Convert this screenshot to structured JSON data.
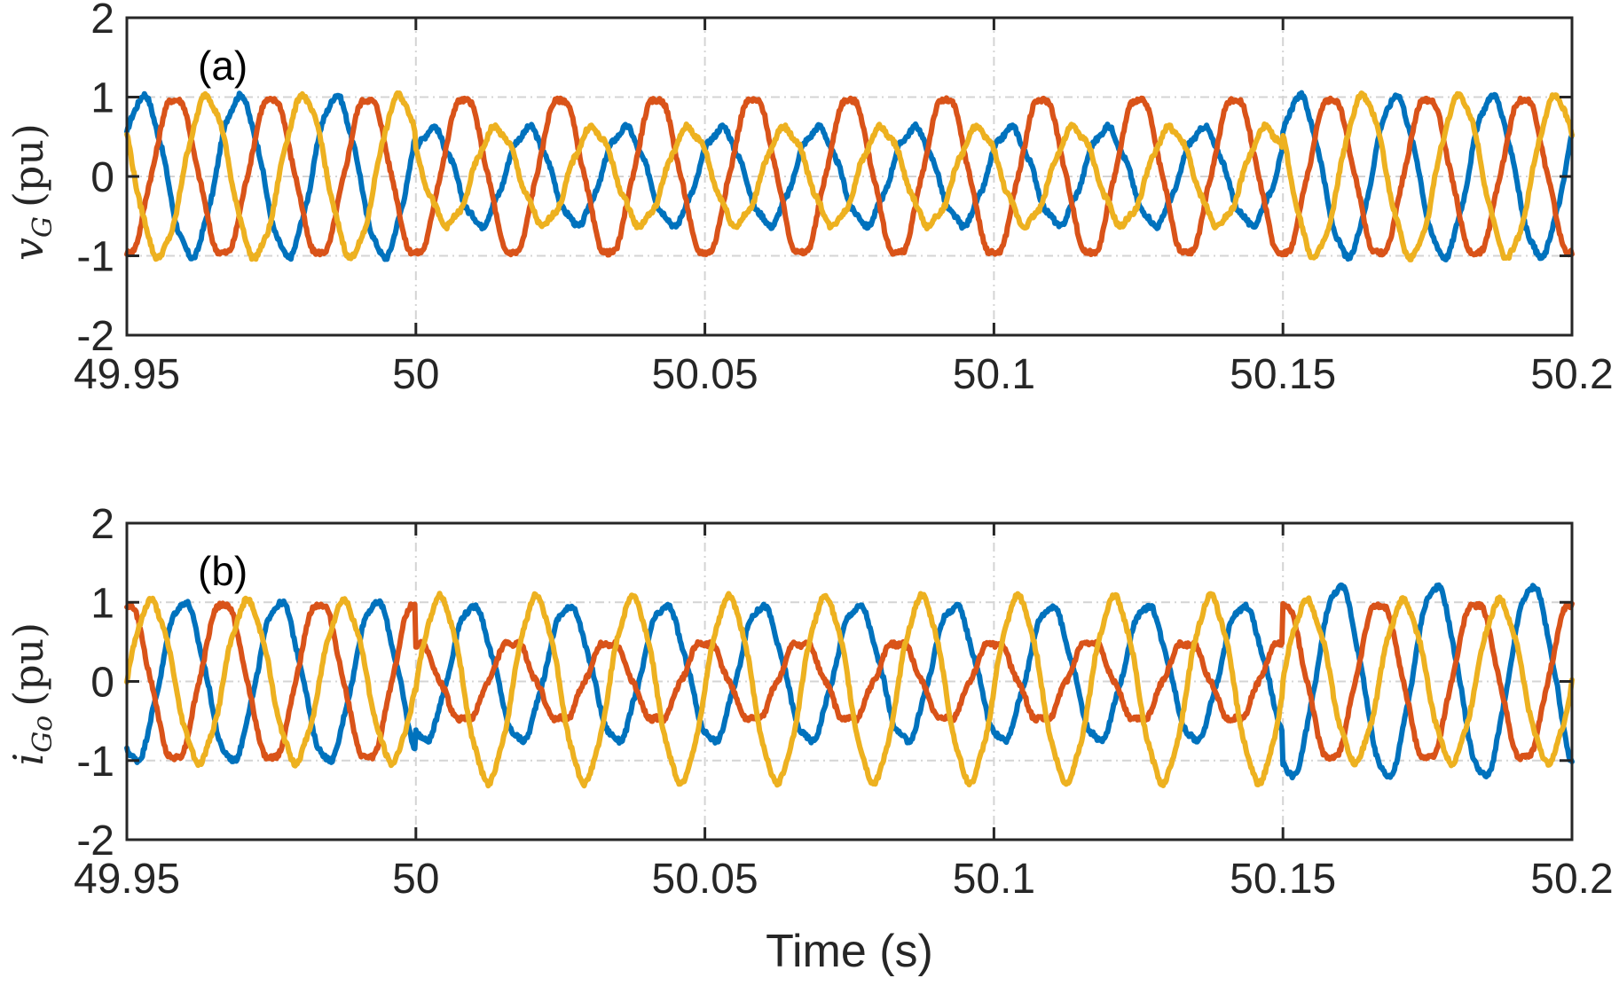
{
  "chart_data": [
    {
      "type": "line",
      "panel_label": "(a)",
      "ylabel_main": "v",
      "ylabel_sub": "G",
      "ylabel_unit": "(pu)",
      "xlim": [
        49.95,
        50.2
      ],
      "ylim": [
        -2,
        2
      ],
      "xticks": [
        49.95,
        50,
        50.05,
        50.1,
        50.15,
        50.2
      ],
      "xtick_labels": [
        "49.95",
        "50",
        "50.05",
        "50.1",
        "50.15",
        "50.2"
      ],
      "yticks": [
        2,
        1,
        0,
        -1,
        -2
      ],
      "ytick_labels": [
        "2",
        "1",
        "0",
        "-1",
        "-2"
      ],
      "grid": true,
      "frequency_hz": 60,
      "event_time": 50.0,
      "recovery_time": 50.15,
      "series": [
        {
          "phase_deg": 30,
          "amp_before": 1.0,
          "amp_during": 0.6,
          "amp_after": 1.0,
          "offset_during": 0.0,
          "color": "#0072BD"
        },
        {
          "phase_deg": -90,
          "amp_before": 1.0,
          "amp_during": 1.0,
          "amp_after": 1.0,
          "offset_during": 0.0,
          "color": "#D95319"
        },
        {
          "phase_deg": 150,
          "amp_before": 1.0,
          "amp_during": 0.6,
          "amp_after": 1.0,
          "offset_during": 0.0,
          "color": "#EDB120"
        }
      ]
    },
    {
      "type": "line",
      "panel_label": "(b)",
      "ylabel_main": "i",
      "ylabel_sub": "Go",
      "ylabel_unit": "(pu)",
      "xlim": [
        49.95,
        50.2
      ],
      "ylim": [
        -2,
        2
      ],
      "xticks": [
        49.95,
        50,
        50.05,
        50.1,
        50.15,
        50.2
      ],
      "xtick_labels": [
        "49.95",
        "50",
        "50.05",
        "50.1",
        "50.15",
        "50.2"
      ],
      "yticks": [
        2,
        1,
        0,
        -1,
        -2
      ],
      "ytick_labels": [
        "2",
        "1",
        "0",
        "-1",
        "-2"
      ],
      "grid": true,
      "xlabel": "Time (s)",
      "frequency_hz": 60,
      "event_time": 50.0,
      "recovery_time": 50.15,
      "series": [
        {
          "phase_deg": -120,
          "amp_before": 1.0,
          "amp_during": 0.85,
          "amp_after": 1.2,
          "offset_during": 0.1,
          "color": "#0072BD"
        },
        {
          "phase_deg": 90,
          "amp_before": 1.0,
          "amp_during": 0.5,
          "amp_after": 1.0,
          "offset_during": 0.0,
          "color": "#D95319"
        },
        {
          "phase_deg": 0,
          "amp_before": 1.0,
          "amp_during": 1.15,
          "amp_after": 1.0,
          "offset_during": -0.1,
          "color": "#EDB120"
        }
      ]
    }
  ]
}
